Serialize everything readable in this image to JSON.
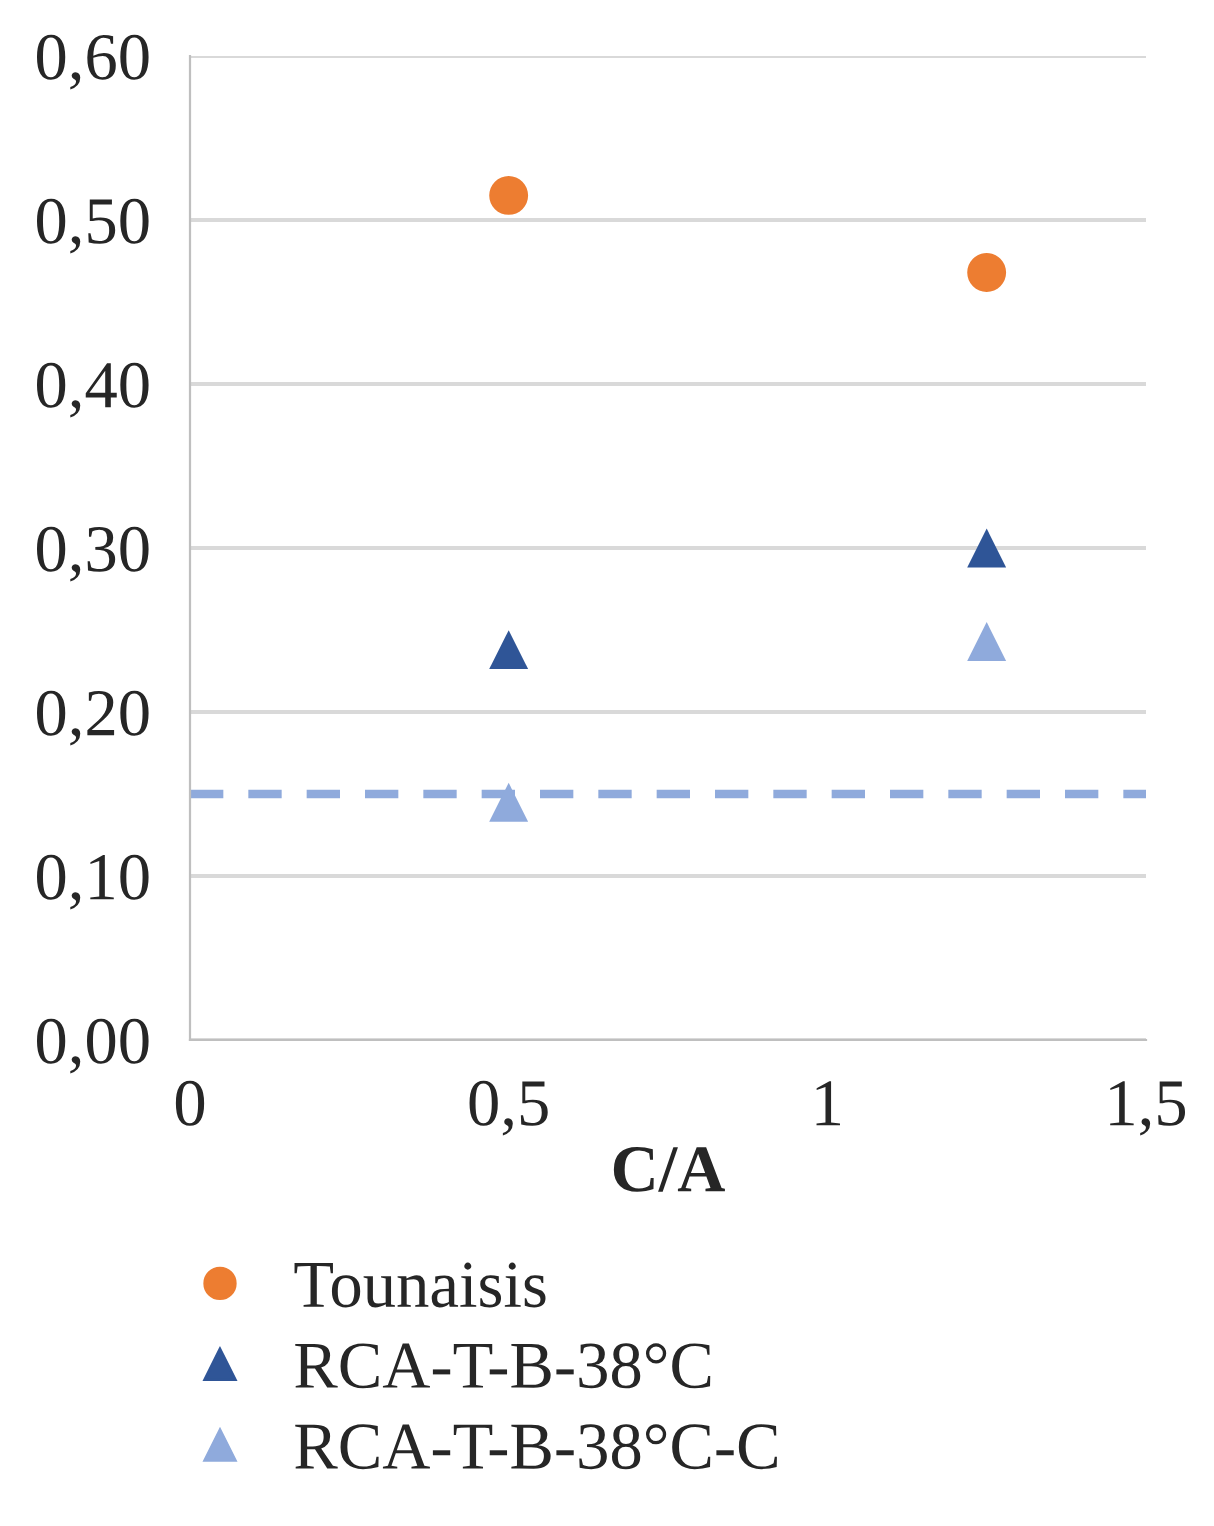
{
  "chart_data": {
    "type": "scatter",
    "xlabel": "C/A",
    "xlim": [
      0,
      1.5
    ],
    "xticks": [
      0,
      {
        "value": 0.5,
        "label": "0,5"
      },
      1,
      {
        "value": 1.5,
        "label": "1,5"
      }
    ],
    "ylim": [
      0,
      0.6
    ],
    "yticks": [
      {
        "value": 0,
        "label": "0,00"
      },
      {
        "value": 0.1,
        "label": "0,10"
      },
      {
        "value": 0.2,
        "label": "0,20"
      },
      {
        "value": 0.3,
        "label": "0,30"
      },
      {
        "value": 0.4,
        "label": "0,40"
      },
      {
        "value": 0.5,
        "label": "0,50"
      },
      {
        "value": 0.6,
        "label": "0,60"
      }
    ],
    "grid": "y",
    "legend": "bottom",
    "x": [
      0.5,
      1.25
    ],
    "series": [
      {
        "name": "Tounaisis",
        "color": "#ed7d31",
        "marker": "circle",
        "values": [
          0.515,
          0.468
        ]
      },
      {
        "name": "RCA-T-B-38°C",
        "color": "#2f5597",
        "marker": "triangle",
        "values": [
          0.238,
          0.3
        ]
      },
      {
        "name": "RCA-T-B-38°C-C",
        "color": "#8faadc",
        "marker": "triangle",
        "values": [
          0.145,
          0.243
        ]
      }
    ],
    "ref_lines": [
      {
        "axis": "y",
        "value": 0.15,
        "color": "#8faadc",
        "line_style": "dashed"
      }
    ]
  }
}
